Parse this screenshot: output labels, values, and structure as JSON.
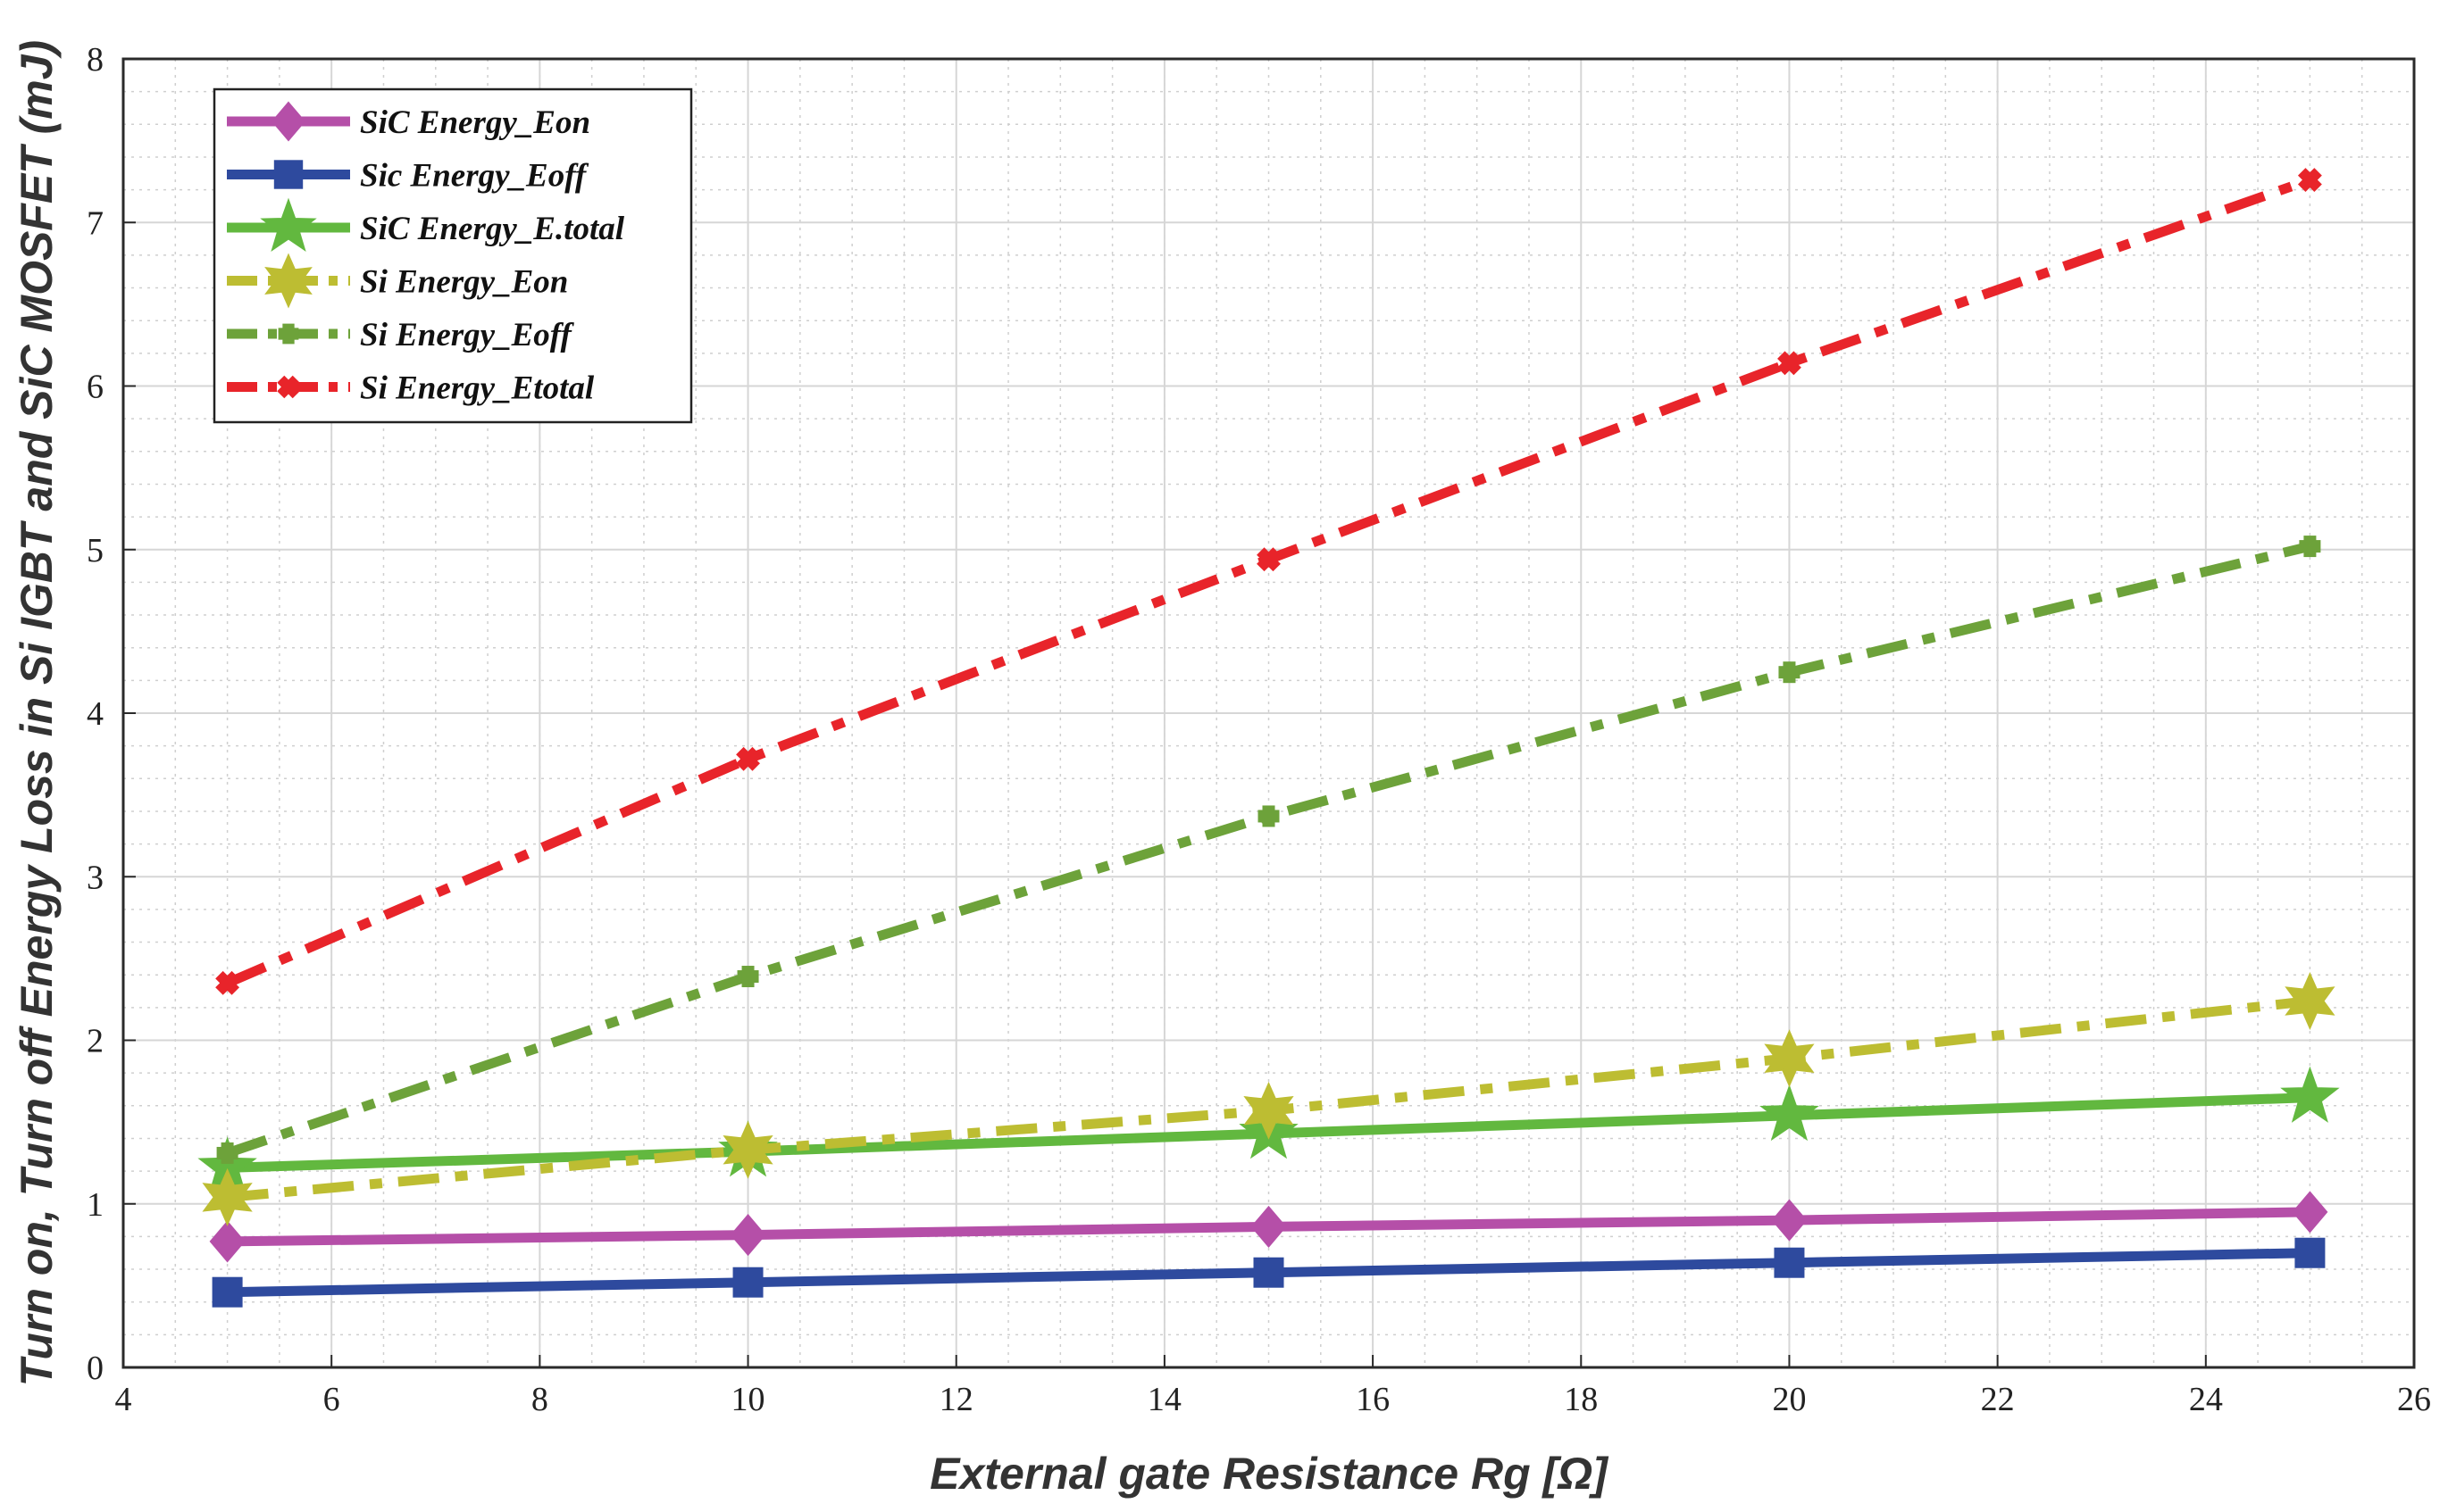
{
  "chart_data": {
    "type": "line",
    "title": "",
    "xlabel": "External gate Resistance Rg [Ω]",
    "ylabel": "Turn on, Turn off Energy Loss in Si IGBT and SiC MOSFET (mJ)",
    "xlim": [
      4,
      26
    ],
    "ylim": [
      0,
      8
    ],
    "xticks": [
      "4",
      "6",
      "8",
      "10",
      "12",
      "14",
      "16",
      "18",
      "20",
      "22",
      "24",
      "26"
    ],
    "yticks": [
      "0",
      "1",
      "2",
      "3",
      "4",
      "5",
      "6",
      "7",
      "8"
    ],
    "grid": true,
    "legend_position": "top-left",
    "x": [
      5,
      10,
      15,
      20,
      25
    ],
    "series": [
      {
        "name": "SiC Energy_Eon",
        "color": "#b54fa8",
        "dash": "solid",
        "marker": "diamond",
        "values": [
          0.77,
          0.81,
          0.86,
          0.9,
          0.95
        ]
      },
      {
        "name": "Sic Energy_Eoff",
        "color": "#2e4a9e",
        "dash": "solid",
        "marker": "square",
        "values": [
          0.46,
          0.52,
          0.58,
          0.64,
          0.7
        ]
      },
      {
        "name": "SiC Energy_E.total",
        "color": "#62b83f",
        "dash": "solid",
        "marker": "star5",
        "values": [
          1.22,
          1.32,
          1.43,
          1.54,
          1.65
        ]
      },
      {
        "name": "Si Energy_Eon",
        "color": "#bdbd32",
        "dash": "dashdot",
        "marker": "star6",
        "values": [
          1.04,
          1.33,
          1.57,
          1.89,
          2.24
        ]
      },
      {
        "name": "Si Energy_Eoff",
        "color": "#6da23a",
        "dash": "dashdot",
        "marker": "plus",
        "values": [
          1.31,
          2.39,
          3.37,
          4.25,
          5.02
        ]
      },
      {
        "name": "Si Energy_Etotal",
        "color": "#e8242a",
        "dash": "dashdot",
        "marker": "cross",
        "values": [
          2.35,
          3.72,
          4.94,
          6.14,
          7.26
        ]
      }
    ]
  }
}
